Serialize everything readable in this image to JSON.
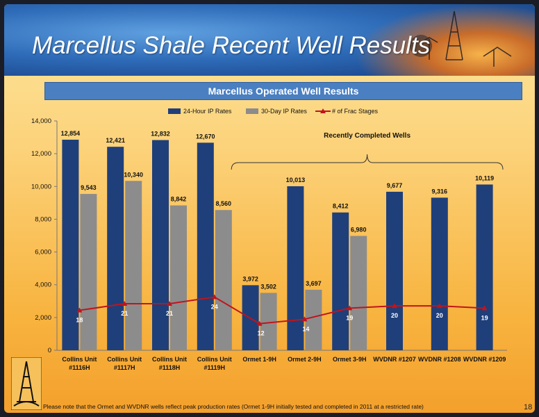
{
  "slide": {
    "title": "Marcellus Shale Recent Well Results",
    "subtitle": "Marcellus Operated Well Results",
    "footnote": "Please note that the Ormet and WVDNR wells reflect peak production rates (Ormet 1-9H initially tested and completed in 2011 at a restricted rate)",
    "page_number": "18",
    "colors": {
      "bar_24hr": "#1f3f7a",
      "bar_30day": "#8c8c8c",
      "line_frac": "#c0141c",
      "header": "#2e6bb8"
    },
    "icons": [
      "oil-derrick-icon",
      "company-logo-icon"
    ]
  },
  "chart_data": {
    "type": "bar",
    "categories": [
      [
        "Collins Unit",
        "#1116H"
      ],
      [
        "Collins Unit",
        "#1117H"
      ],
      [
        "Collins Unit",
        "#1118H"
      ],
      [
        "Collins Unit",
        "#1119H"
      ],
      [
        "Ormet 1-9H"
      ],
      [
        "Ormet 2-9H"
      ],
      [
        "Ormet 3-9H"
      ],
      [
        "WVDNR #1207"
      ],
      [
        "WVDNR #1208"
      ],
      [
        "WVDNR #1209"
      ]
    ],
    "series": [
      {
        "name": "24-Hour IP Rates",
        "type": "bar",
        "values": [
          12854,
          12421,
          12832,
          12670,
          3972,
          10013,
          8412,
          9677,
          9316,
          10119
        ],
        "labels": [
          "12,854",
          "12,421",
          "12,832",
          "12,670",
          "3,972",
          "10,013",
          "8,412",
          "9,677",
          "9,316",
          "10,119"
        ]
      },
      {
        "name": "30-Day IP Rates",
        "type": "bar",
        "values": [
          9543,
          10340,
          8842,
          8560,
          3502,
          3697,
          6980,
          null,
          null,
          null
        ],
        "labels": [
          "9,543",
          "10,340",
          "8,842",
          "8,560",
          "3,502",
          "3,697",
          "6,980",
          null,
          null,
          null
        ]
      },
      {
        "name": "# of Frac Stages",
        "type": "line",
        "values": [
          18,
          21,
          21,
          24,
          12,
          14,
          19,
          20,
          20,
          19
        ],
        "labels": [
          "18",
          "21",
          "21",
          "24",
          "12",
          "14",
          "19",
          "20",
          "20",
          "19"
        ]
      }
    ],
    "ylim": [
      0,
      14000
    ],
    "yticks": [
      "0",
      "2,000",
      "4,000",
      "6,000",
      "8,000",
      "10,000",
      "12,000",
      "14,000"
    ],
    "annotation": "Recently Completed Wells",
    "annotation_span": [
      4,
      9
    ],
    "legend_position": "top",
    "grid": false
  }
}
